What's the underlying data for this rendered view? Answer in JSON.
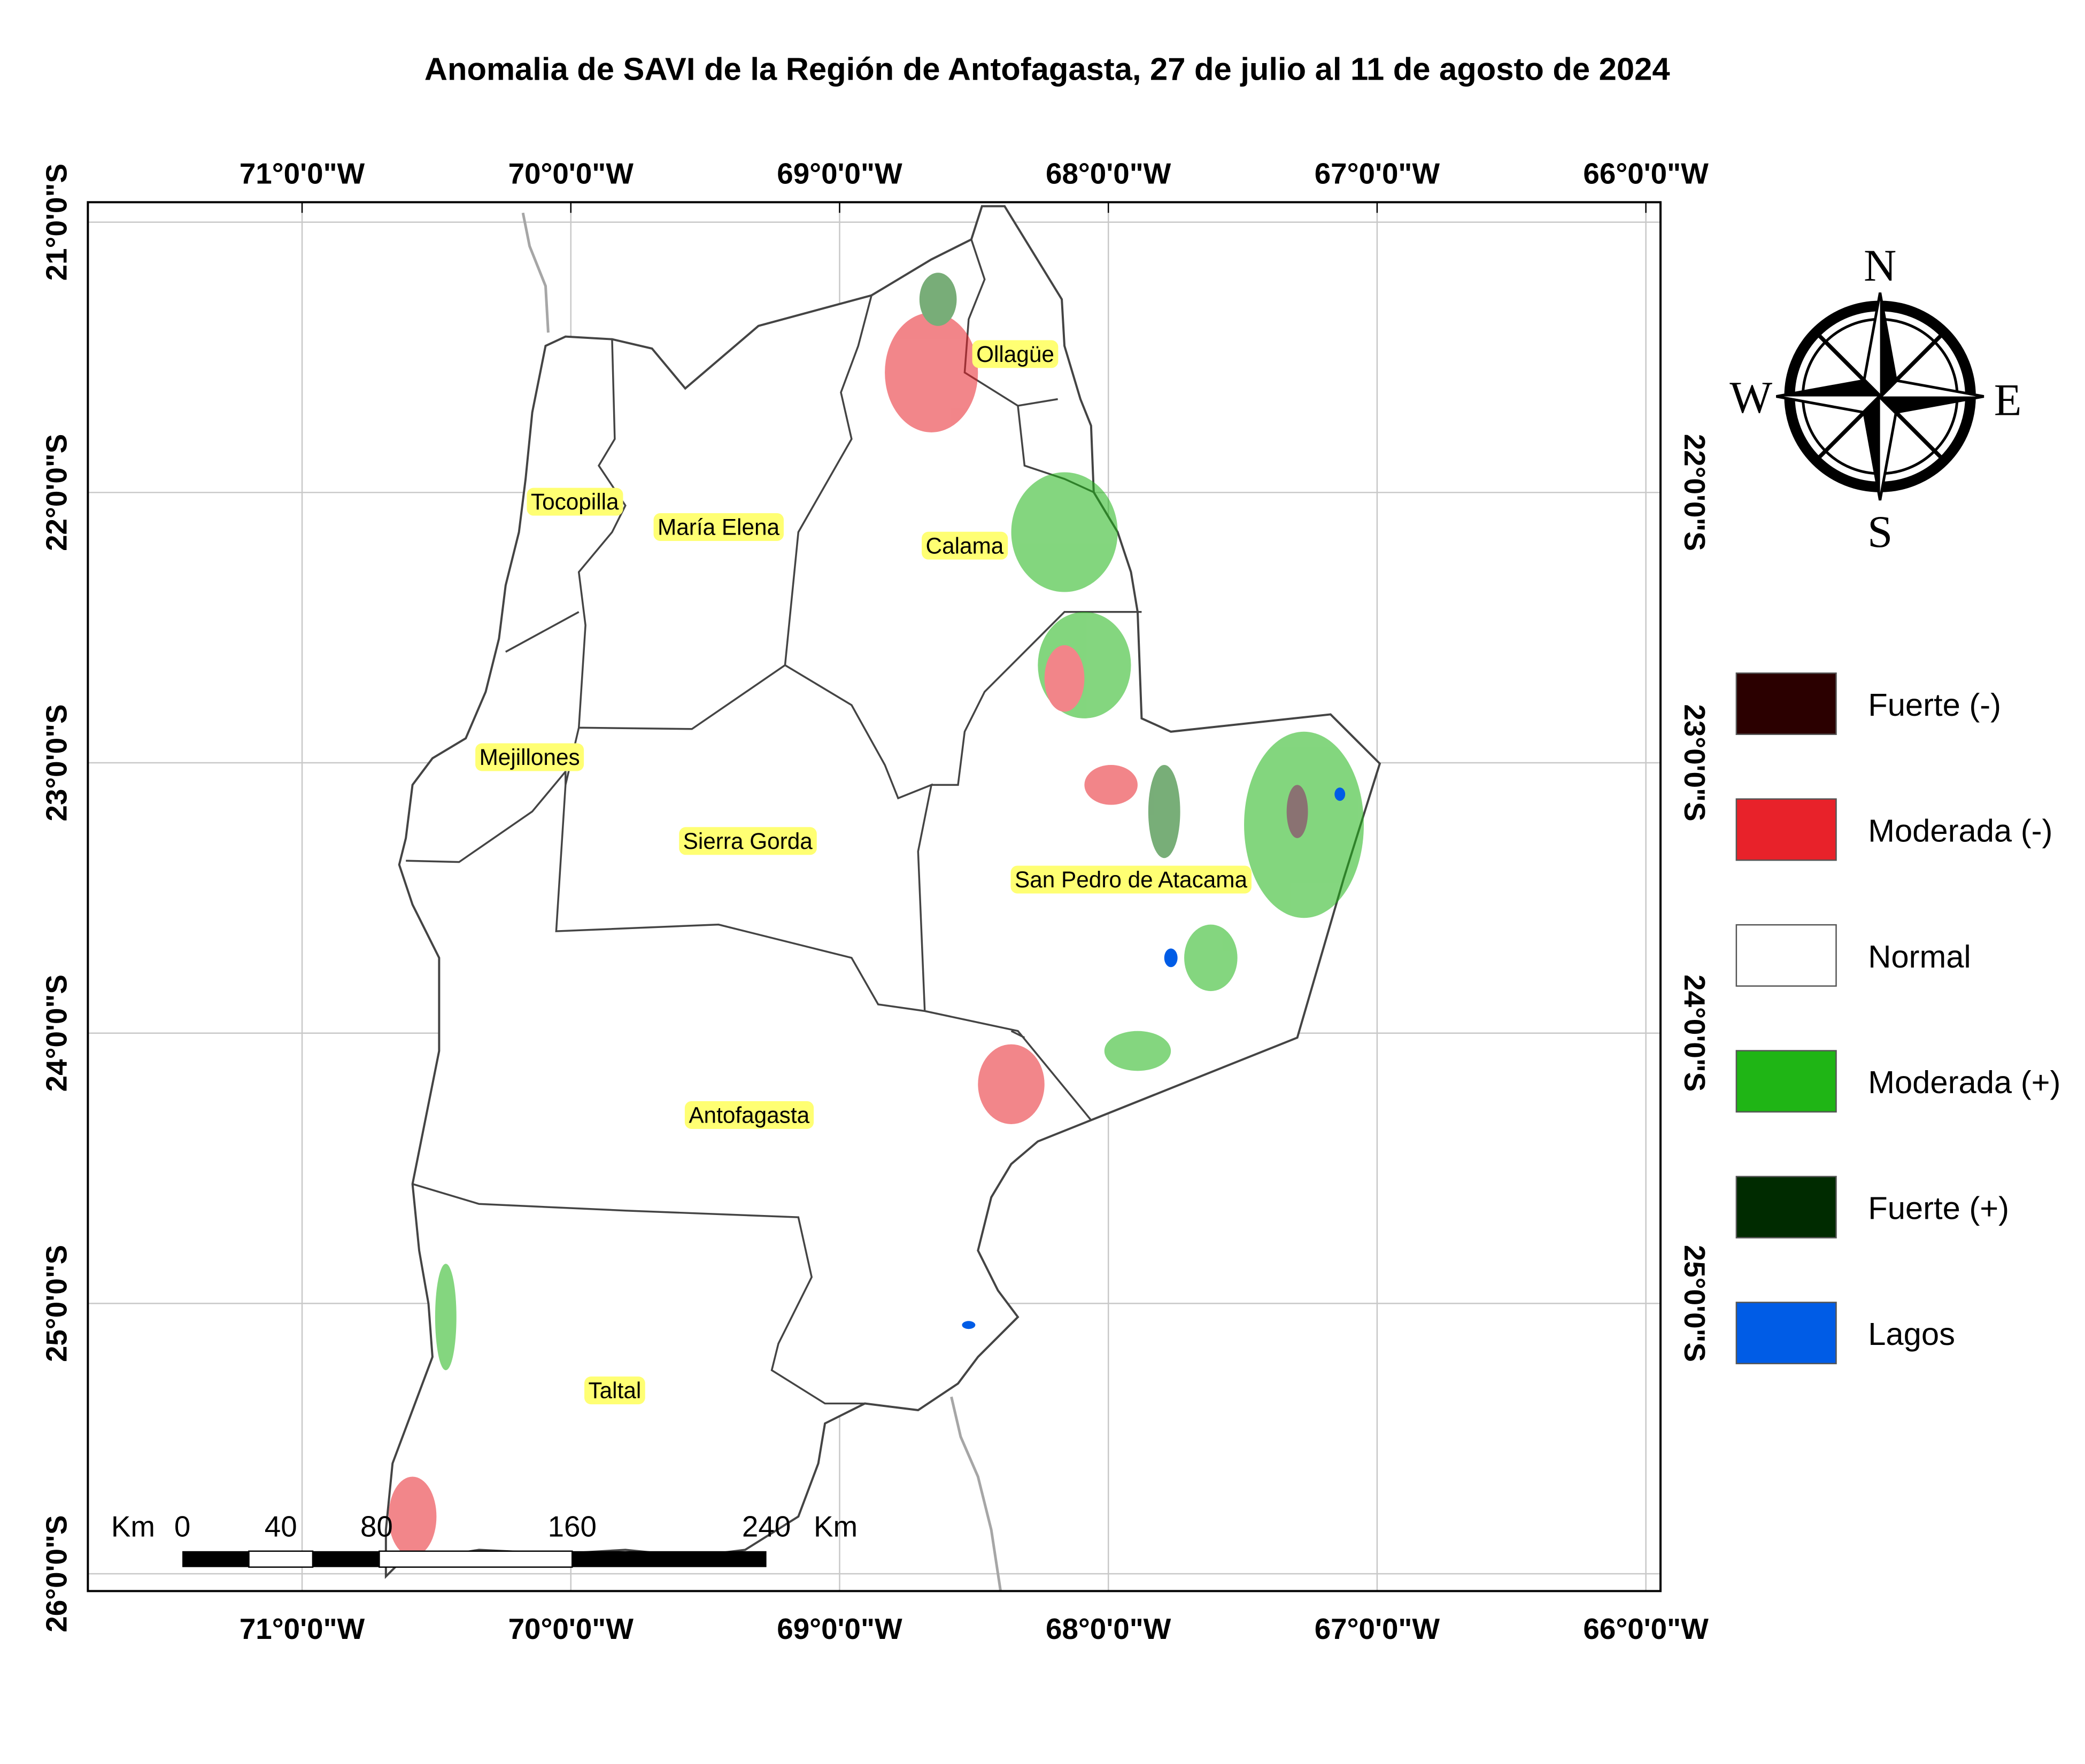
{
  "title": "Anomalia de SAVI de la Región de Antofagasta, 27 de julio al 11 de agosto de 2024",
  "longitude_labels": [
    "71°0'0\"W",
    "70°0'0\"W",
    "69°0'0\"W",
    "68°0'0\"W",
    "67°0'0\"W",
    "66°0'0\"W"
  ],
  "latitude_labels": [
    "21°0'0\"S",
    "22°0'0\"S",
    "23°0'0\"S",
    "24°0'0\"S",
    "25°0'0\"S",
    "26°0'0\"S"
  ],
  "communes": [
    {
      "label": "Ollagüe"
    },
    {
      "label": "Tocopilla"
    },
    {
      "label": "María Elena"
    },
    {
      "label": "Calama"
    },
    {
      "label": "Mejillones"
    },
    {
      "label": "Sierra Gorda"
    },
    {
      "label": "San Pedro de Atacama"
    },
    {
      "label": "Antofagasta"
    },
    {
      "label": "Taltal"
    }
  ],
  "legend": [
    {
      "label": "Fuerte (-)",
      "color": "#2b0000"
    },
    {
      "label": "Moderada (-)",
      "color": "#e8222a"
    },
    {
      "label": "Normal",
      "color": "#ffffff"
    },
    {
      "label": "Moderada (+)",
      "color": "#1fb515"
    },
    {
      "label": "Fuerte (+)",
      "color": "#002b00"
    },
    {
      "label": "Lagos",
      "color": "#005ce6"
    }
  ],
  "compass": {
    "north": "N",
    "east": "E",
    "south": "S",
    "west": "W"
  },
  "scale_bar": {
    "labels": [
      "Km",
      "0",
      "40",
      "80",
      "160",
      "240",
      "Km"
    ]
  }
}
